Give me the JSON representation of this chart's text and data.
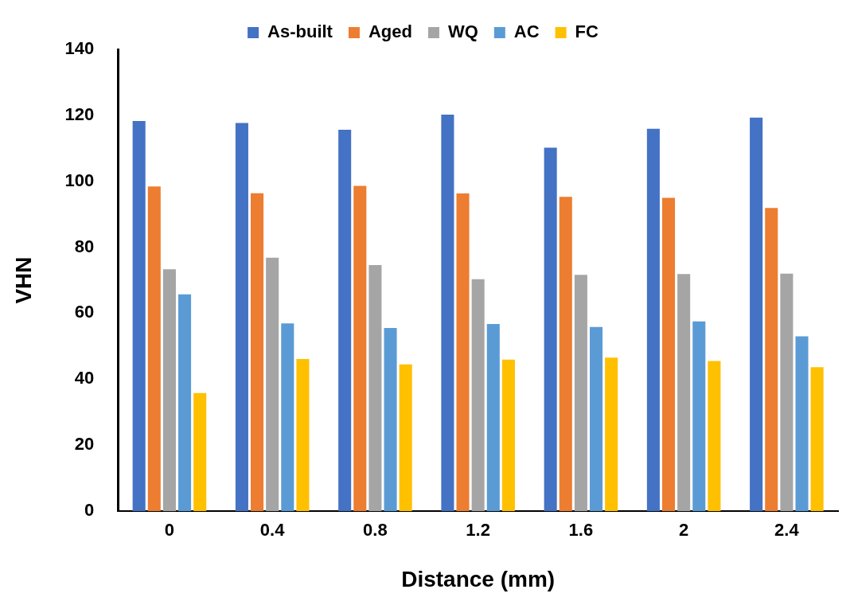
{
  "chart_data": {
    "type": "bar",
    "xlabel": "Distance (mm)",
    "ylabel": "VHN",
    "categories": [
      "0",
      "0.4",
      "0.8",
      "1.2",
      "1.6",
      "2",
      "2.4"
    ],
    "series": [
      {
        "name": "As-built",
        "color": "#4472c4",
        "values": [
          118.3,
          117.7,
          115.6,
          120.2,
          110.2,
          115.9,
          119.3
        ]
      },
      {
        "name": "Aged",
        "color": "#ed7d31",
        "values": [
          98.4,
          96.4,
          98.6,
          96.3,
          95.3,
          95.0,
          91.9
        ]
      },
      {
        "name": "WQ",
        "color": "#a5a5a5",
        "values": [
          73.3,
          76.8,
          74.6,
          70.3,
          71.6,
          71.9,
          72.0
        ]
      },
      {
        "name": "AC",
        "color": "#5b9bd5",
        "values": [
          65.7,
          56.9,
          55.5,
          56.7,
          55.8,
          57.5,
          53.0
        ]
      },
      {
        "name": "FC",
        "color": "#ffc000",
        "values": [
          35.8,
          46.1,
          44.5,
          45.9,
          46.5,
          45.5,
          43.6
        ]
      }
    ],
    "ylim": [
      0,
      140
    ],
    "yticks": [
      0,
      20,
      40,
      60,
      80,
      100,
      120,
      140
    ],
    "grid": false,
    "legend": "top"
  }
}
